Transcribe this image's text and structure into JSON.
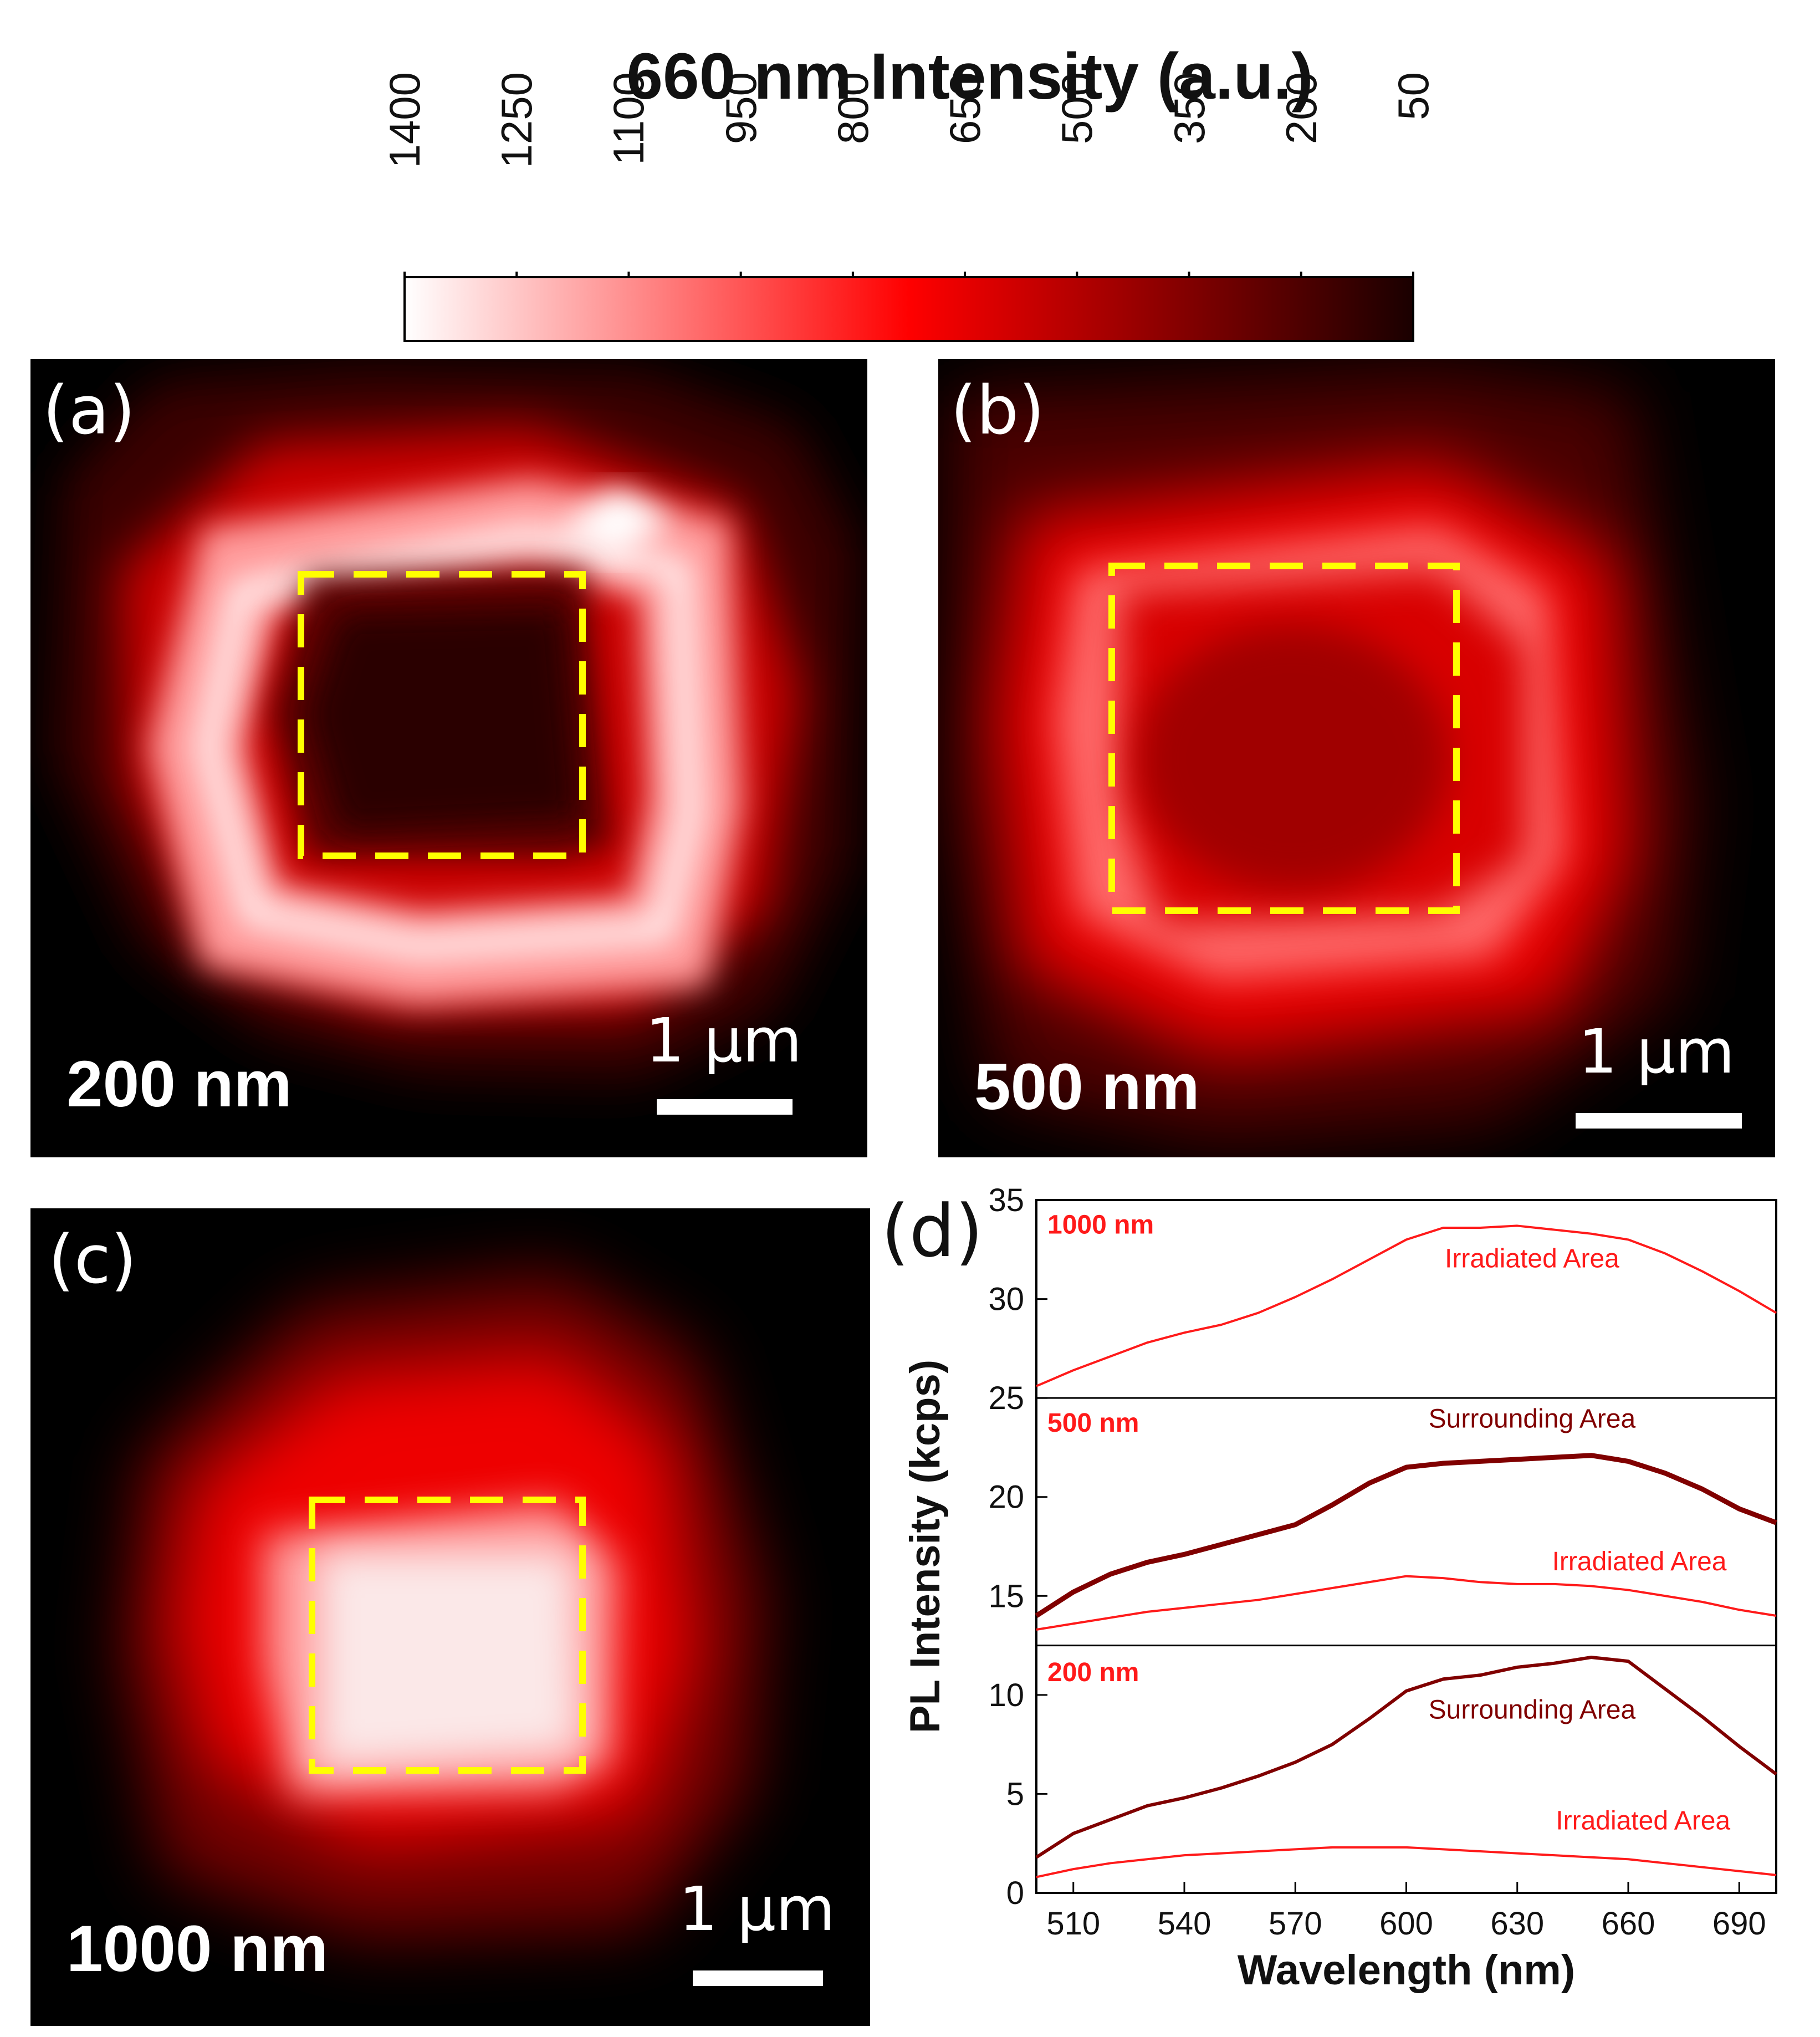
{
  "colorbar": {
    "title": "660 nm Intensity (a.u.)",
    "ticks": [
      "1400",
      "1250",
      "1100",
      "950",
      "800",
      "650",
      "500",
      "350",
      "200",
      "50"
    ],
    "colors": [
      "#ffffff",
      "#ff8080",
      "#ff0000",
      "#800000",
      "#1a0000"
    ]
  },
  "panels": [
    {
      "letter": "(a)",
      "thickness": "200 nm",
      "scale": "1 μm"
    },
    {
      "letter": "(b)",
      "thickness": "500 nm",
      "scale": "1 μm"
    },
    {
      "letter": "(c)",
      "thickness": "1000 nm",
      "scale": "1 μm"
    }
  ],
  "plot": {
    "letter": "(d)",
    "xlabel": "Wavelength (nm)",
    "ylabel": "PL Intensity (kcps)"
  },
  "chart_data": {
    "type": "line",
    "title": "",
    "xlabel": "Wavelength (nm)",
    "ylabel": "PL Intensity (kcps)",
    "xlim": [
      500,
      700
    ],
    "ylim": [
      0,
      35
    ],
    "x_ticks": [
      510,
      540,
      570,
      600,
      630,
      660,
      690
    ],
    "y_ticks": [
      0,
      5,
      10,
      15,
      20,
      25,
      30,
      35
    ],
    "x": [
      500,
      510,
      520,
      530,
      540,
      550,
      560,
      570,
      580,
      590,
      600,
      610,
      620,
      630,
      640,
      650,
      660,
      670,
      680,
      690,
      700
    ],
    "stack_dividers": [
      25,
      12.5
    ],
    "series": [
      {
        "name": "1000 nm Irradiated Area",
        "color": "#ff1a1a",
        "width": 4,
        "values": [
          25.6,
          26.4,
          27.1,
          27.8,
          28.3,
          28.7,
          29.3,
          30.1,
          31.0,
          32.0,
          33.0,
          33.6,
          33.6,
          33.7,
          33.5,
          33.3,
          33.0,
          32.3,
          31.4,
          30.4,
          29.3
        ]
      },
      {
        "name": "500 nm Surrounding Area",
        "color": "#800000",
        "width": 9,
        "values": [
          14.0,
          15.2,
          16.1,
          16.7,
          17.1,
          17.6,
          18.1,
          18.6,
          19.6,
          20.7,
          21.5,
          21.7,
          21.8,
          21.9,
          22.0,
          22.1,
          21.8,
          21.2,
          20.4,
          19.4,
          18.7
        ]
      },
      {
        "name": "500 nm Irradiated Area",
        "color": "#ff1a1a",
        "width": 4,
        "values": [
          13.3,
          13.6,
          13.9,
          14.2,
          14.4,
          14.6,
          14.8,
          15.1,
          15.4,
          15.7,
          16.0,
          15.9,
          15.7,
          15.6,
          15.6,
          15.5,
          15.3,
          15.0,
          14.7,
          14.3,
          14.0
        ]
      },
      {
        "name": "200 nm Surrounding Area",
        "color": "#800000",
        "width": 6,
        "values": [
          1.8,
          3.0,
          3.7,
          4.4,
          4.8,
          5.3,
          5.9,
          6.6,
          7.5,
          8.8,
          10.2,
          10.8,
          11.0,
          11.4,
          11.6,
          11.9,
          11.7,
          10.3,
          8.9,
          7.4,
          6.0
        ]
      },
      {
        "name": "200 nm Irradiated Area",
        "color": "#ff1a1a",
        "width": 4,
        "values": [
          0.8,
          1.2,
          1.5,
          1.7,
          1.9,
          2.0,
          2.1,
          2.2,
          2.3,
          2.3,
          2.3,
          2.2,
          2.1,
          2.0,
          1.9,
          1.8,
          1.7,
          1.5,
          1.3,
          1.1,
          0.9
        ]
      }
    ],
    "labels": [
      {
        "text": "1000 nm",
        "x": 503,
        "y": 33.3,
        "color": "#ff1a1a",
        "weight": "bold",
        "anchor": "start"
      },
      {
        "text": "Irradiated Area",
        "x": 634,
        "y": 31.6,
        "color": "#ff1a1a",
        "weight": "normal",
        "anchor": "middle"
      },
      {
        "text": "500 nm",
        "x": 503,
        "y": 23.3,
        "color": "#ff1a1a",
        "weight": "bold",
        "anchor": "start"
      },
      {
        "text": "Surrounding Area",
        "x": 634,
        "y": 23.5,
        "color": "#800000",
        "weight": "normal",
        "anchor": "middle"
      },
      {
        "text": "Irradiated Area",
        "x": 663,
        "y": 16.3,
        "color": "#ff1a1a",
        "weight": "normal",
        "anchor": "middle"
      },
      {
        "text": "200 nm",
        "x": 503,
        "y": 10.7,
        "color": "#ff1a1a",
        "weight": "bold",
        "anchor": "start"
      },
      {
        "text": "Surrounding Area",
        "x": 634,
        "y": 8.8,
        "color": "#800000",
        "weight": "normal",
        "anchor": "middle"
      },
      {
        "text": "Irradiated Area",
        "x": 664,
        "y": 3.2,
        "color": "#ff1a1a",
        "weight": "normal",
        "anchor": "middle"
      }
    ]
  }
}
